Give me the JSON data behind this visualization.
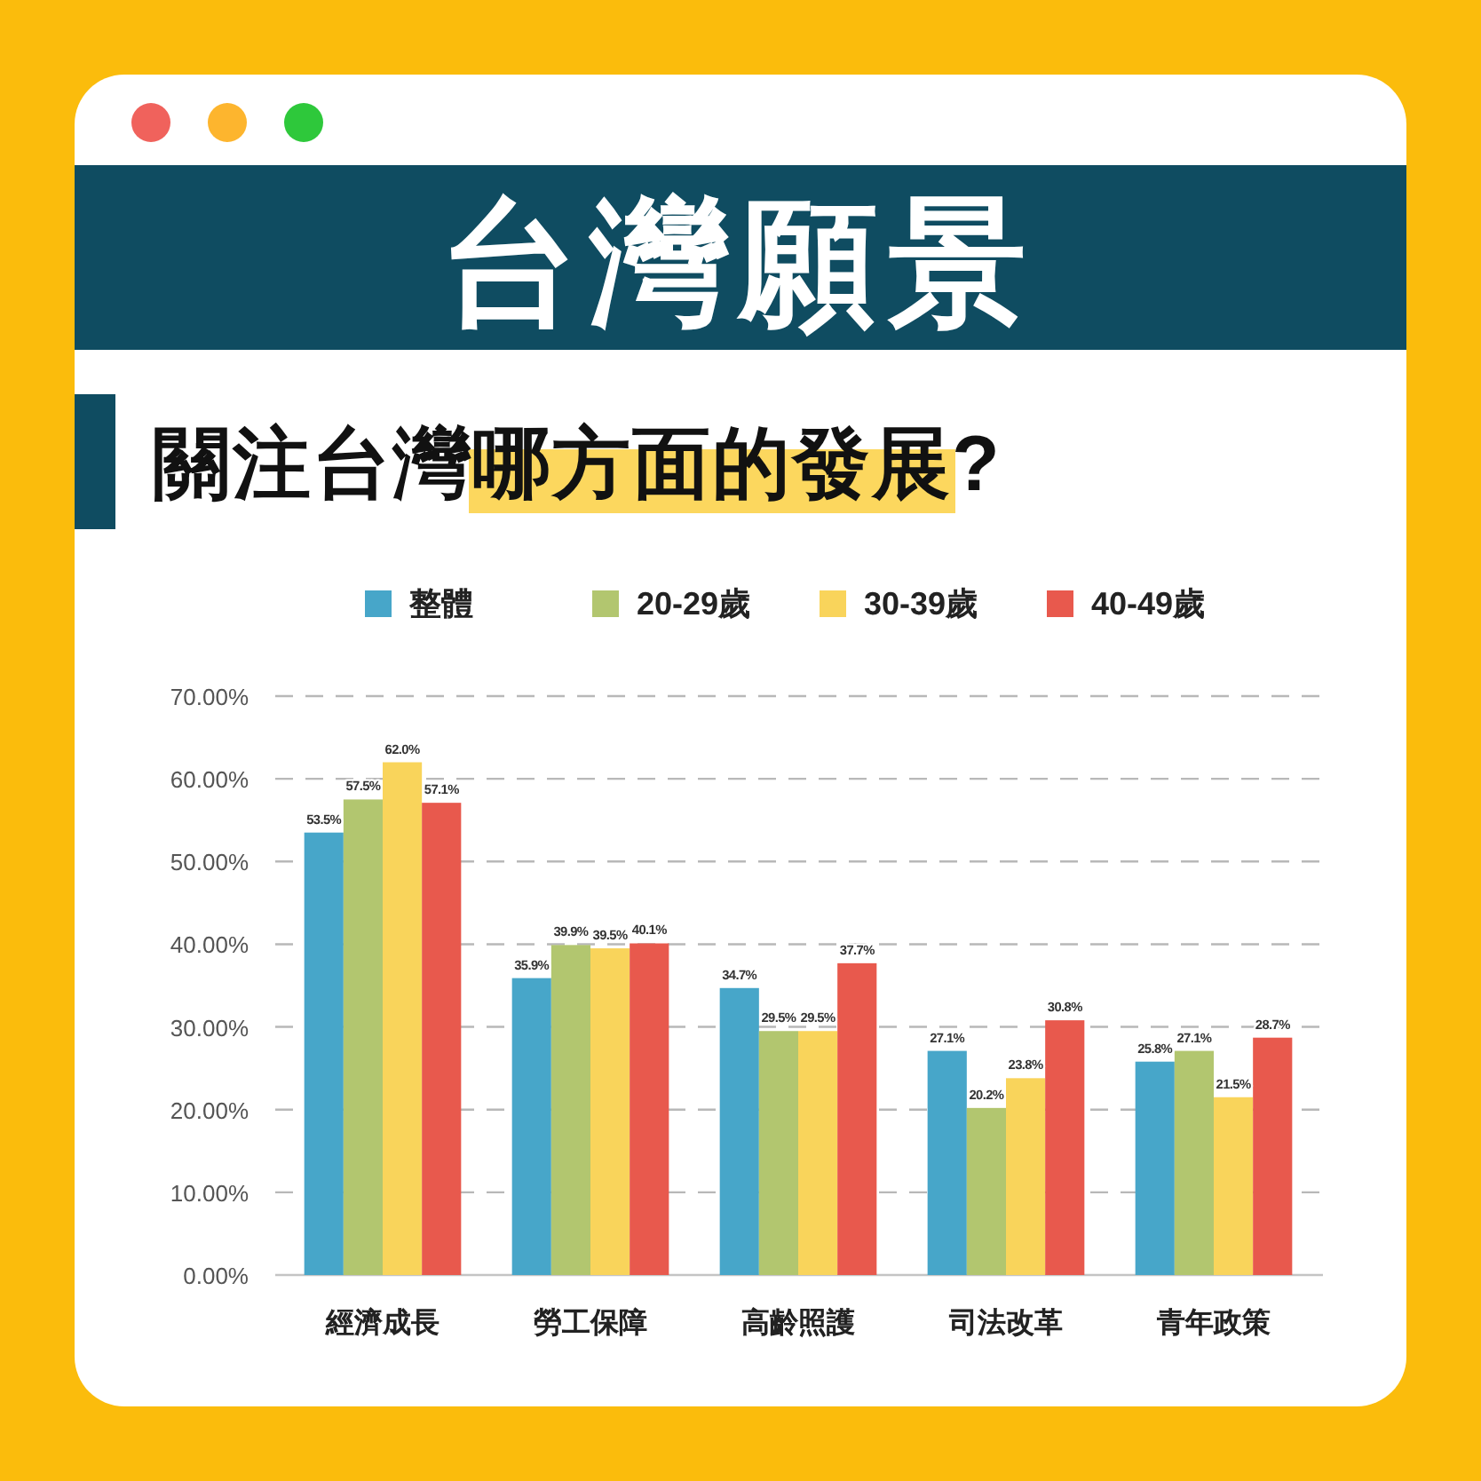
{
  "chart_data": {
    "type": "bar",
    "title": "台灣願景",
    "subtitle": "關注台灣哪方面的發展?",
    "categories": [
      "經濟成長",
      "勞工保障",
      "高齡照護",
      "司法改革",
      "青年政策"
    ],
    "series": [
      {
        "name": "整體",
        "color": "#47a6c9",
        "values": [
          53.5,
          35.9,
          34.7,
          27.1,
          25.8
        ],
        "value_labels": [
          "53.5%",
          "35.9%",
          "34.7%",
          "27.1%",
          "25.8%"
        ]
      },
      {
        "name": "20-29歲",
        "color": "#b2c66f",
        "values": [
          57.5,
          39.9,
          29.5,
          20.2,
          27.1
        ],
        "value_labels": [
          "57.5%",
          "39.9%",
          "29.5%",
          "20.2%",
          "27.1%"
        ]
      },
      {
        "name": "30-39歲",
        "color": "#f9d45b",
        "values": [
          62.0,
          39.5,
          29.5,
          23.8,
          21.5
        ],
        "value_labels": [
          "62.0%",
          "39.5%",
          "29.5%",
          "23.8%",
          "21.5%"
        ]
      },
      {
        "name": "40-49歲",
        "color": "#e8594d",
        "values": [
          57.1,
          40.1,
          37.7,
          30.8,
          28.7
        ],
        "value_labels": [
          "57.1%",
          "40.1%",
          "37.7%",
          "30.8%",
          "28.7%"
        ]
      }
    ],
    "ylim": [
      0,
      70
    ],
    "yticks": [
      {
        "value": 0,
        "label": "0.00%"
      },
      {
        "value": 10,
        "label": "10.00%"
      },
      {
        "value": 20,
        "label": "20.00%"
      },
      {
        "value": 30,
        "label": "30.00%"
      },
      {
        "value": 40,
        "label": "40.00%"
      },
      {
        "value": 50,
        "label": "50.00%"
      },
      {
        "value": 60,
        "label": "60.00%"
      },
      {
        "value": 70,
        "label": "70.00%"
      }
    ],
    "grid": "y",
    "legend": "top"
  }
}
